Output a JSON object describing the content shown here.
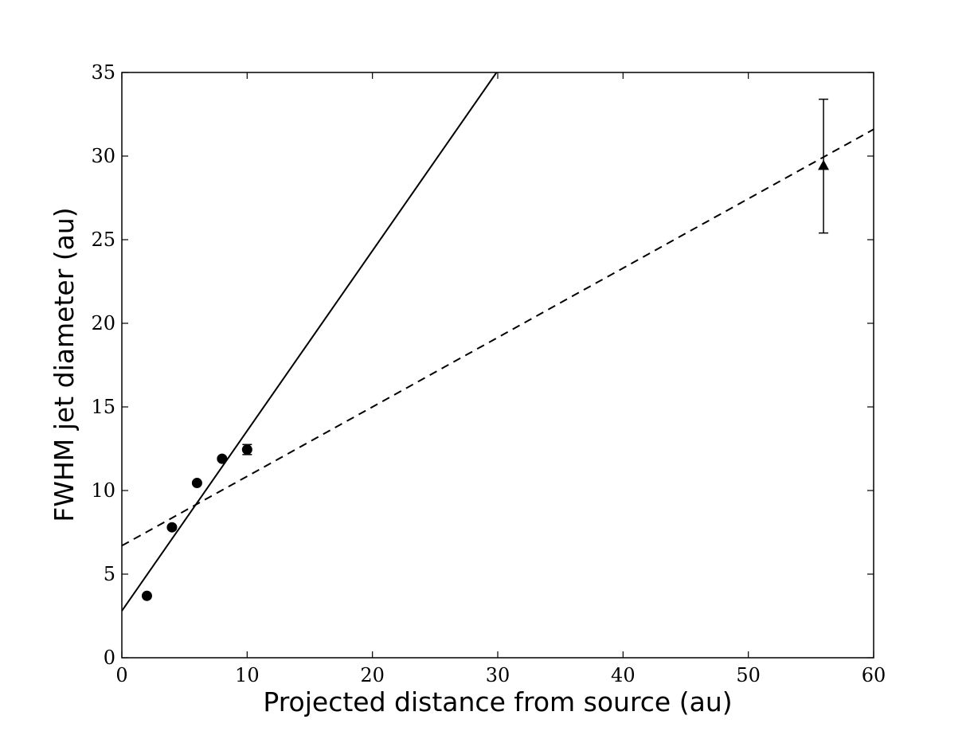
{
  "chart_data": {
    "type": "scatter",
    "xlabel": "Projected distance from source (au)",
    "ylabel": "FWHM jet diameter (au)",
    "xlim": [
      0,
      60
    ],
    "ylim": [
      0,
      35
    ],
    "xticks": [
      0,
      10,
      20,
      30,
      40,
      50,
      60
    ],
    "yticks": [
      0,
      5,
      10,
      15,
      20,
      25,
      30,
      35
    ],
    "grid": false,
    "series": [
      {
        "marker": "circle",
        "color": "#000000",
        "points": [
          {
            "x": 2,
            "y": 3.7,
            "err": 0.1
          },
          {
            "x": 4,
            "y": 7.8,
            "err": 0.1
          },
          {
            "x": 6,
            "y": 10.45,
            "err": 0.1
          },
          {
            "x": 8,
            "y": 11.9,
            "err": 0.1
          },
          {
            "x": 10,
            "y": 12.45,
            "err": 0.3
          }
        ]
      },
      {
        "marker": "triangle",
        "color": "#000000",
        "points": [
          {
            "x": 56,
            "y": 29.4,
            "err": 4.0
          }
        ]
      }
    ],
    "fit_lines": [
      {
        "style": "solid",
        "color": "#000000",
        "x": [
          0,
          29.9
        ],
        "y": [
          2.8,
          35
        ]
      },
      {
        "style": "dashed",
        "color": "#000000",
        "x": [
          0,
          60
        ],
        "y": [
          6.7,
          31.6
        ]
      }
    ]
  }
}
